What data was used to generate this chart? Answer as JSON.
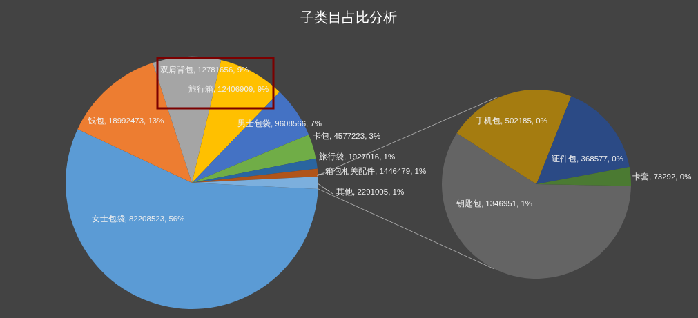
{
  "chart_data": [
    {
      "type": "pie",
      "title": "子类目占比分析",
      "categories": [
        "女士包袋",
        "钱包",
        "双肩背包",
        "旅行箱",
        "男士包袋",
        "卡包",
        "旅行袋",
        "箱包相关配件",
        "其他"
      ],
      "values": [
        82208523,
        18992473,
        12781656,
        12406909,
        9608566,
        4577223,
        1927016,
        1446479,
        2291005
      ],
      "value_labels": [
        "82208523, 56%",
        "18992473, 13%",
        "12781656, 9%",
        "12406909, 9%",
        "9608566, 7%",
        "4577223, 3%",
        "1927016, 1%",
        "1446479, 1%",
        "2291005, 1%"
      ],
      "colors": [
        "#5b9bd5",
        "#ed7d31",
        "#a5a5a5",
        "#ffc000",
        "#4472c4",
        "#70ad47",
        "#2a65a0",
        "#b0541a",
        "#7cafdd"
      ]
    },
    {
      "type": "pie",
      "categories": [
        "钥匙包",
        "手机包",
        "证件包",
        "卡套"
      ],
      "values": [
        1346951,
        502185,
        368577,
        73292
      ],
      "value_labels": [
        "1346951, 1%",
        "502185, 0%",
        "368577, 0%",
        "73292, 0%"
      ],
      "colors": [
        "#646464",
        "#a57c10",
        "#2b4a85",
        "#4b7a32"
      ]
    }
  ]
}
